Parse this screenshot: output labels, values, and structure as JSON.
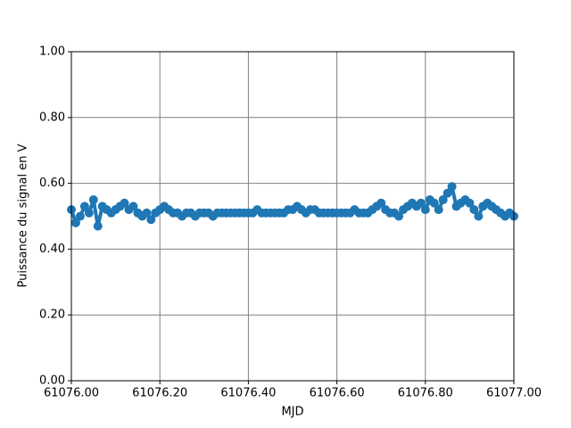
{
  "chart_data": {
    "type": "line",
    "xlabel": "MJD",
    "ylabel": "Puissance du signal en V",
    "x": [
      61076.0,
      61076.01,
      61076.02,
      61076.03,
      61076.04,
      61076.05,
      61076.06,
      61076.07,
      61076.08,
      61076.09,
      61076.1,
      61076.11,
      61076.12,
      61076.13,
      61076.14,
      61076.15,
      61076.16,
      61076.17,
      61076.18,
      61076.19,
      61076.2,
      61076.21,
      61076.22,
      61076.23,
      61076.24,
      61076.25,
      61076.26,
      61076.27,
      61076.28,
      61076.29,
      61076.3,
      61076.31,
      61076.32,
      61076.33,
      61076.34,
      61076.35,
      61076.36,
      61076.37,
      61076.38,
      61076.39,
      61076.4,
      61076.41,
      61076.42,
      61076.43,
      61076.44,
      61076.45,
      61076.46,
      61076.47,
      61076.48,
      61076.49,
      61076.5,
      61076.51,
      61076.52,
      61076.53,
      61076.54,
      61076.55,
      61076.56,
      61076.57,
      61076.58,
      61076.59,
      61076.6,
      61076.61,
      61076.62,
      61076.63,
      61076.64,
      61076.65,
      61076.66,
      61076.67,
      61076.68,
      61076.69,
      61076.7,
      61076.71,
      61076.72,
      61076.73,
      61076.74,
      61076.75,
      61076.76,
      61076.77,
      61076.78,
      61076.79,
      61076.8,
      61076.81,
      61076.82,
      61076.83,
      61076.84,
      61076.85,
      61076.86,
      61076.87,
      61076.88,
      61076.89,
      61076.9,
      61076.91,
      61076.92,
      61076.93,
      61076.94,
      61076.95,
      61076.96,
      61076.97,
      61076.98,
      61076.99,
      61077.0
    ],
    "series": [
      {
        "color": "#1f77b4",
        "values": [
          0.52,
          0.48,
          0.5,
          0.53,
          0.51,
          0.55,
          0.47,
          0.53,
          0.52,
          0.51,
          0.52,
          0.53,
          0.54,
          0.52,
          0.53,
          0.51,
          0.5,
          0.51,
          0.49,
          0.51,
          0.52,
          0.53,
          0.52,
          0.51,
          0.51,
          0.5,
          0.51,
          0.51,
          0.5,
          0.51,
          0.51,
          0.51,
          0.5,
          0.51,
          0.51,
          0.51,
          0.51,
          0.51,
          0.51,
          0.51,
          0.51,
          0.51,
          0.52,
          0.51,
          0.51,
          0.51,
          0.51,
          0.51,
          0.51,
          0.52,
          0.52,
          0.53,
          0.52,
          0.51,
          0.52,
          0.52,
          0.51,
          0.51,
          0.51,
          0.51,
          0.51,
          0.51,
          0.51,
          0.51,
          0.52,
          0.51,
          0.51,
          0.51,
          0.52,
          0.53,
          0.54,
          0.52,
          0.51,
          0.51,
          0.5,
          0.52,
          0.53,
          0.54,
          0.53,
          0.54,
          0.52,
          0.55,
          0.54,
          0.52,
          0.55,
          0.57,
          0.59,
          0.53,
          0.54,
          0.55,
          0.54,
          0.52,
          0.5,
          0.53,
          0.54,
          0.53,
          0.52,
          0.51,
          0.5,
          0.51,
          0.5
        ]
      }
    ],
    "xlim": [
      61076,
      61077
    ],
    "xticks": [
      {
        "value": 61076.0,
        "label": "61076.00"
      },
      {
        "value": 61076.2,
        "label": "61076.20"
      },
      {
        "value": 61076.4,
        "label": "61076.40"
      },
      {
        "value": 61076.6,
        "label": "61076.60"
      },
      {
        "value": 61076.8,
        "label": "61076.80"
      },
      {
        "value": 61077.0,
        "label": "61077.00"
      }
    ],
    "ylim": [
      0,
      1
    ],
    "yticks": [
      {
        "value": 0,
        "label": "0.00"
      },
      {
        "value": 0.2,
        "label": "0.20"
      },
      {
        "value": 0.4,
        "label": "0.40"
      },
      {
        "value": 0.6,
        "label": "0.60"
      },
      {
        "value": 0.8,
        "label": "0.80"
      },
      {
        "value": 1.0,
        "label": "1.00"
      }
    ],
    "grid": true
  }
}
